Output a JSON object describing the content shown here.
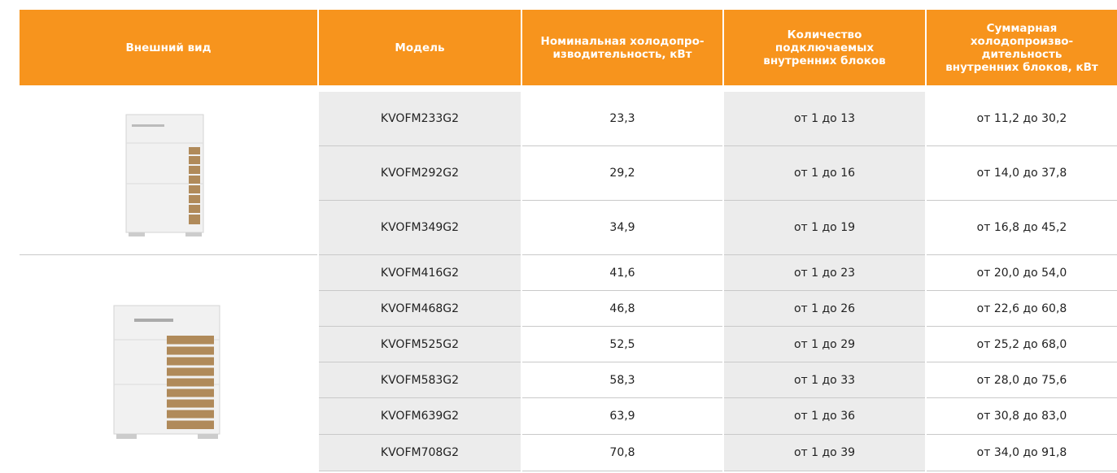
{
  "table": {
    "header": [
      "Внешний вид",
      "Модель",
      "Номинальная холодопро-\nизводительность, кВт",
      "Количество\nподключаемых\nвнутренних блоков",
      "Суммарная\nхолодопроизво-\nдительность\nвнутренних блоков, кВт"
    ],
    "rows": [
      [
        "KVOFM233G2",
        "23,3",
        "от 1 до 13",
        "от 11,2 до 30,2"
      ],
      [
        "KVOFM292G2",
        "29,2",
        "от 1 до 16",
        "от 14,0 до 37,8"
      ],
      [
        "KVOFM349G2",
        "34,9",
        "от 1 до 19",
        "от 16,8 до 45,2"
      ],
      [
        "KVOFM416G2",
        "41,6",
        "от 1 до 23",
        "от 20,0 до 54,0"
      ],
      [
        "KVOFM468G2",
        "46,8",
        "от 1 до 26",
        "от 22,6 до 60,8"
      ],
      [
        "KVOFM525G2",
        "52,5",
        "от 1 до 29",
        "от 25,2 до 68,0"
      ],
      [
        "KVOFM583G2",
        "58,3",
        "от 1 до 33",
        "от 28,0 до 75,6"
      ],
      [
        "KVOFM639G2",
        "63,9",
        "от 1 до 36",
        "от 30,8 до 83,0"
      ],
      [
        "KVOFM708G2",
        "70,8",
        "от 1 до 39",
        "от 34,0 до 91,8"
      ]
    ]
  }
}
